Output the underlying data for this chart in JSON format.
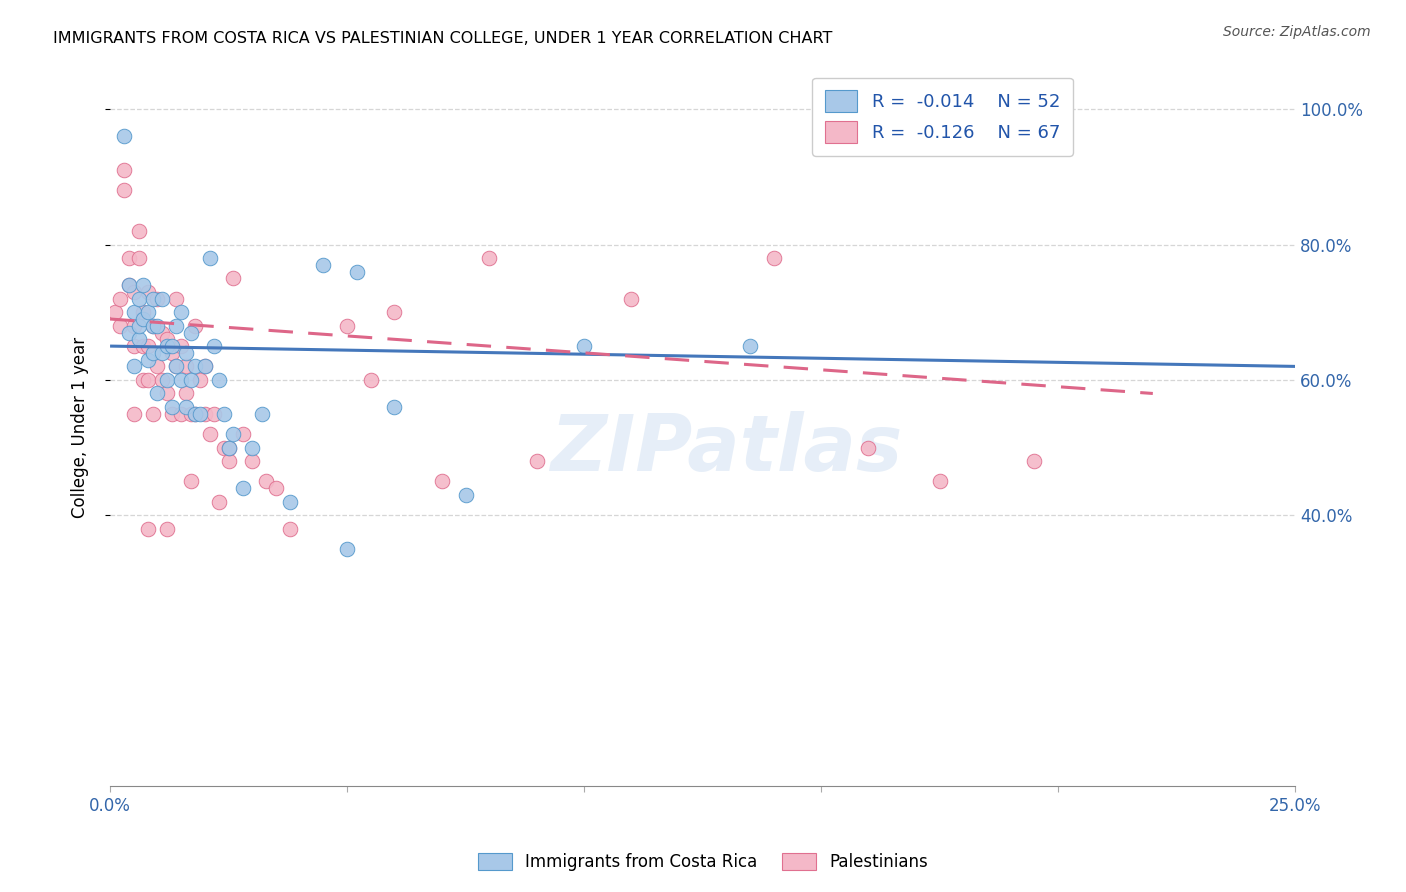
{
  "title": "IMMIGRANTS FROM COSTA RICA VS PALESTINIAN COLLEGE, UNDER 1 YEAR CORRELATION CHART",
  "source": "Source: ZipAtlas.com",
  "ylabel": "College, Under 1 year",
  "xmin": 0.0,
  "xmax": 0.25,
  "ymin": 0.0,
  "ymax": 1.06,
  "color_blue": "#a8c8e8",
  "color_pink": "#f4b8c8",
  "color_blue_edge": "#5599cc",
  "color_pink_edge": "#e07090",
  "color_blue_line": "#4477bb",
  "color_pink_line": "#dd6688",
  "watermark": "ZIPatlas",
  "legend_r1": "-0.014",
  "legend_n1": "52",
  "legend_r2": "-0.126",
  "legend_n2": "67",
  "blue_x": [
    0.003,
    0.004,
    0.004,
    0.005,
    0.005,
    0.006,
    0.006,
    0.006,
    0.007,
    0.007,
    0.008,
    0.008,
    0.009,
    0.009,
    0.009,
    0.01,
    0.01,
    0.011,
    0.011,
    0.012,
    0.012,
    0.013,
    0.013,
    0.014,
    0.014,
    0.015,
    0.015,
    0.016,
    0.016,
    0.017,
    0.017,
    0.018,
    0.018,
    0.019,
    0.02,
    0.021,
    0.022,
    0.023,
    0.024,
    0.025,
    0.026,
    0.028,
    0.03,
    0.032,
    0.038,
    0.045,
    0.052,
    0.06,
    0.075,
    0.1,
    0.135,
    0.05
  ],
  "blue_y": [
    0.96,
    0.74,
    0.67,
    0.7,
    0.62,
    0.72,
    0.66,
    0.68,
    0.74,
    0.69,
    0.63,
    0.7,
    0.72,
    0.64,
    0.68,
    0.68,
    0.58,
    0.64,
    0.72,
    0.65,
    0.6,
    0.65,
    0.56,
    0.68,
    0.62,
    0.6,
    0.7,
    0.64,
    0.56,
    0.67,
    0.6,
    0.62,
    0.55,
    0.55,
    0.62,
    0.78,
    0.65,
    0.6,
    0.55,
    0.5,
    0.52,
    0.44,
    0.5,
    0.55,
    0.42,
    0.77,
    0.76,
    0.56,
    0.43,
    0.65,
    0.65,
    0.35
  ],
  "pink_x": [
    0.001,
    0.002,
    0.002,
    0.003,
    0.003,
    0.004,
    0.004,
    0.005,
    0.005,
    0.005,
    0.006,
    0.006,
    0.007,
    0.007,
    0.007,
    0.008,
    0.008,
    0.008,
    0.009,
    0.009,
    0.01,
    0.01,
    0.011,
    0.011,
    0.012,
    0.012,
    0.013,
    0.013,
    0.014,
    0.014,
    0.015,
    0.015,
    0.016,
    0.016,
    0.017,
    0.017,
    0.018,
    0.019,
    0.02,
    0.02,
    0.021,
    0.022,
    0.023,
    0.024,
    0.025,
    0.026,
    0.028,
    0.03,
    0.033,
    0.038,
    0.05,
    0.06,
    0.07,
    0.09,
    0.11,
    0.14,
    0.16,
    0.175,
    0.195,
    0.005,
    0.008,
    0.012,
    0.018,
    0.025,
    0.035,
    0.055,
    0.08
  ],
  "pink_y": [
    0.7,
    0.72,
    0.68,
    0.88,
    0.91,
    0.74,
    0.78,
    0.68,
    0.73,
    0.65,
    0.82,
    0.78,
    0.7,
    0.65,
    0.6,
    0.73,
    0.65,
    0.6,
    0.68,
    0.55,
    0.72,
    0.62,
    0.67,
    0.6,
    0.66,
    0.58,
    0.64,
    0.55,
    0.72,
    0.62,
    0.65,
    0.55,
    0.62,
    0.58,
    0.55,
    0.45,
    0.68,
    0.6,
    0.62,
    0.55,
    0.52,
    0.55,
    0.42,
    0.5,
    0.48,
    0.75,
    0.52,
    0.48,
    0.45,
    0.38,
    0.68,
    0.7,
    0.45,
    0.48,
    0.72,
    0.78,
    0.5,
    0.45,
    0.48,
    0.55,
    0.38,
    0.38,
    0.55,
    0.5,
    0.44,
    0.6,
    0.78
  ],
  "blue_line_x": [
    0.0,
    0.25
  ],
  "blue_line_y": [
    0.65,
    0.62
  ],
  "pink_line_x": [
    0.0,
    0.22
  ],
  "pink_line_y": [
    0.69,
    0.58
  ]
}
